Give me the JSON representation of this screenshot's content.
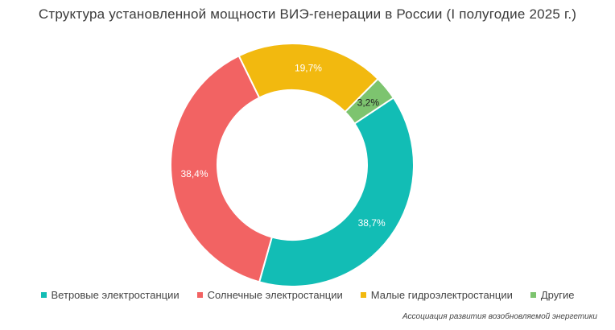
{
  "title": "Структура установленной мощности ВИЭ-генерации в России (I полугодие 2025 г.)",
  "source": "Ассоциация развития возобновляемой энергетики",
  "chart_data": {
    "type": "pie",
    "donut": true,
    "categories": [
      "Ветровые электростанции",
      "Солнечные электростанции",
      "Малые гидроэлектростанции",
      "Другие"
    ],
    "values": [
      38.7,
      38.4,
      19.7,
      3.2
    ],
    "labels": [
      "38,7%",
      "38,4%",
      "19,7%",
      "3,2%"
    ],
    "colors": [
      "#12bdb5",
      "#f26363",
      "#f2b90f",
      "#7dc46f"
    ],
    "legend_position": "bottom"
  }
}
